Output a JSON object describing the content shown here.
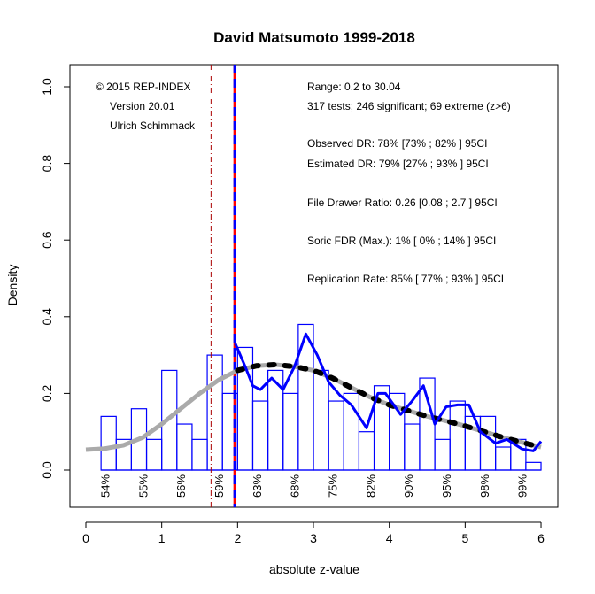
{
  "chart_data": {
    "type": "bar",
    "title": "David Matsumoto 1999-2018",
    "xlabel": "absolute z-value",
    "ylabel": "Density",
    "xlim": [
      0,
      6
    ],
    "ylim": [
      0,
      1
    ],
    "xticks": [
      "0",
      "1",
      "2",
      "3",
      "4",
      "5",
      "6"
    ],
    "yticks": [
      "0.0",
      "0.2",
      "0.4",
      "0.6",
      "0.8",
      "1.0"
    ],
    "grid": false,
    "histogram": {
      "bin_width": 0.2,
      "bin_starts": [
        0.2,
        0.4,
        0.6,
        0.8,
        1.0,
        1.2,
        1.4,
        1.6,
        1.8,
        2.0,
        2.2,
        2.4,
        2.6,
        2.8,
        3.0,
        3.2,
        3.4,
        3.6,
        3.8,
        4.0,
        4.2,
        4.4,
        4.6,
        4.8,
        5.0,
        5.2,
        5.4,
        5.6,
        5.8
      ],
      "densities": [
        0.14,
        0.08,
        0.16,
        0.08,
        0.26,
        0.12,
        0.08,
        0.3,
        0.2,
        0.32,
        0.18,
        0.26,
        0.2,
        0.38,
        0.26,
        0.18,
        0.2,
        0.1,
        0.22,
        0.2,
        0.12,
        0.24,
        0.08,
        0.18,
        0.14,
        0.14,
        0.06,
        0.08,
        0.02
      ],
      "color": "#0000ff"
    },
    "fitted_curve": {
      "x": [
        0,
        0.25,
        0.5,
        0.75,
        1,
        1.25,
        1.5,
        1.75,
        2,
        2.25,
        2.5,
        2.75,
        3,
        3.25,
        3.5,
        3.75,
        4,
        4.25,
        4.5,
        4.75,
        5,
        5.25,
        5.5,
        5.75,
        6
      ],
      "y": [
        0.053,
        0.056,
        0.065,
        0.085,
        0.12,
        0.16,
        0.2,
        0.235,
        0.26,
        0.272,
        0.275,
        0.27,
        0.26,
        0.24,
        0.215,
        0.19,
        0.17,
        0.155,
        0.14,
        0.128,
        0.115,
        0.1,
        0.085,
        0.072,
        0.06
      ],
      "color": "#aaaaaa",
      "dotted_from": 2,
      "dotted_color": "#000000"
    },
    "kde_curve": {
      "x": [
        1.97,
        2.1,
        2.2,
        2.3,
        2.45,
        2.6,
        2.75,
        2.9,
        3.05,
        3.2,
        3.35,
        3.5,
        3.7,
        3.85,
        3.95,
        4.15,
        4.3,
        4.45,
        4.6,
        4.75,
        4.9,
        5.05,
        5.2,
        5.4,
        5.55,
        5.75,
        5.9,
        6.0
      ],
      "y": [
        0.33,
        0.27,
        0.22,
        0.21,
        0.24,
        0.21,
        0.27,
        0.355,
        0.3,
        0.23,
        0.195,
        0.17,
        0.11,
        0.2,
        0.2,
        0.145,
        0.18,
        0.22,
        0.12,
        0.165,
        0.17,
        0.17,
        0.1,
        0.07,
        0.08,
        0.055,
        0.05,
        0.075
      ],
      "color": "#0000ff"
    },
    "vertical_lines": [
      {
        "x": 1.96,
        "color": "#ff0000",
        "style": "solid"
      },
      {
        "x": 1.96,
        "color": "#0000ff",
        "style": "dashed"
      },
      {
        "x": 1.65,
        "color": "#aa0000",
        "style": "dotdash"
      }
    ],
    "power_labels": {
      "x": [
        0.25,
        0.75,
        1.25,
        1.75,
        2.25,
        2.75,
        3.25,
        3.75,
        4.25,
        4.75,
        5.25,
        5.75
      ],
      "labels": [
        "54%",
        "55%",
        "56%",
        "59%",
        "63%",
        "68%",
        "75%",
        "82%",
        "90%",
        "95%",
        "98%",
        "99%"
      ]
    },
    "annotations_left": [
      "© 2015 REP-INDEX",
      "Version 20.01",
      "Ulrich Schimmack"
    ],
    "annotations_right": [
      "Range: 0.2 to 30.04",
      "317 tests; 246 significant; 69 extreme (z>6)",
      "Observed DR: 78% [73% ; 82% ] 95CI",
      "Estimated DR: 79% [27% ; 93% ] 95CI",
      "File Drawer Ratio: 0.26 [0.08 ; 2.7 ] 95CI",
      "Soric FDR (Max.): 1% [ 0% ; 14% ] 95CI",
      "Replication Rate: 85% [ 77% ; 93% ] 95CI"
    ]
  }
}
